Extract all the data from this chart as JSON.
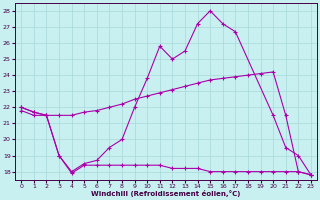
{
  "xlabel": "Windchill (Refroidissement éolien,°C)",
  "background_color": "#c8f0f0",
  "grid_color": "#a8d8d8",
  "line_color": "#aa00aa",
  "xlim": [
    -0.5,
    23.5
  ],
  "ylim": [
    17.5,
    28.5
  ],
  "yticks": [
    18,
    19,
    20,
    21,
    22,
    23,
    24,
    25,
    26,
    27,
    28
  ],
  "xticks": [
    0,
    1,
    2,
    3,
    4,
    5,
    6,
    7,
    8,
    9,
    10,
    11,
    12,
    13,
    14,
    15,
    16,
    17,
    18,
    19,
    20,
    21,
    22,
    23
  ],
  "line1_x": [
    0,
    1,
    2,
    3,
    4,
    5,
    6,
    7,
    8,
    9,
    10,
    11,
    12,
    13,
    14,
    15,
    16,
    17,
    20,
    21,
    22,
    23
  ],
  "line1_y": [
    22,
    21.7,
    21.5,
    19,
    18,
    18.5,
    18.7,
    19.5,
    20,
    22,
    23.8,
    25.8,
    25.0,
    25.5,
    27.2,
    28.0,
    27.2,
    26.7,
    21.5,
    19.5,
    19,
    17.8
  ],
  "line2_x": [
    0,
    1,
    2,
    3,
    4,
    5,
    6,
    7,
    8,
    9,
    10,
    11,
    12,
    13,
    14,
    15,
    16,
    17,
    18,
    19,
    20,
    21,
    22,
    23
  ],
  "line2_y": [
    22,
    21.7,
    21.5,
    21.5,
    21.5,
    21.7,
    21.8,
    22.0,
    22.2,
    22.5,
    22.7,
    22.9,
    23.1,
    23.3,
    23.5,
    23.7,
    23.8,
    23.9,
    24.0,
    24.1,
    24.2,
    21.5,
    18.0,
    17.8
  ],
  "line3_x": [
    0,
    1,
    2,
    3,
    4,
    5,
    6,
    7,
    8,
    9,
    10,
    11,
    12,
    13,
    14,
    15,
    16,
    17,
    18,
    19,
    20,
    21,
    22,
    23
  ],
  "line3_y": [
    21.8,
    21.5,
    21.5,
    19.0,
    17.9,
    18.4,
    18.4,
    18.4,
    18.4,
    18.4,
    18.4,
    18.4,
    18.2,
    18.2,
    18.2,
    18.0,
    18.0,
    18.0,
    18.0,
    18.0,
    18.0,
    18.0,
    18.0,
    17.8
  ]
}
